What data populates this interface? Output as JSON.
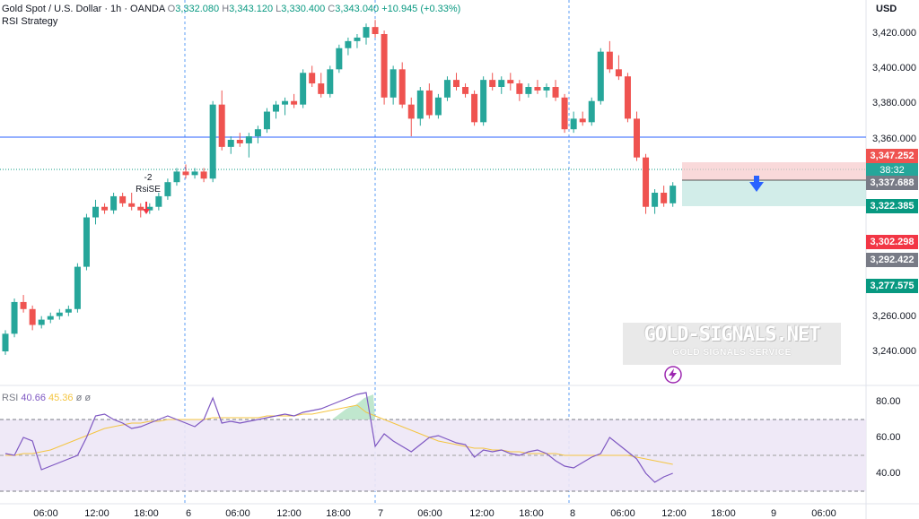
{
  "header": {
    "symbol": "Gold Spot / U.S. Dollar · 1h · OANDA",
    "open_label": "O",
    "open": "3,332.080",
    "high_label": "H",
    "high": "3,343.120",
    "low_label": "L",
    "low": "3,330.400",
    "close_label": "C",
    "close": "3,343.040",
    "change": "+10.945 (+0.33%)",
    "strategy": "RSI Strategy"
  },
  "rsi_header": {
    "name": "RSI",
    "value": "40.66",
    "ma": "45.36",
    "extra1": "ø",
    "extra2": "ø"
  },
  "currency": "USD",
  "price_axis": [
    "3,420.000",
    "3,400.000",
    "3,380.000",
    "3,360.000",
    "3,260.000",
    "3,240.000"
  ],
  "rsi_axis": [
    "80.00",
    "60.00",
    "40.00"
  ],
  "time_axis": [
    "06:00",
    "12:00",
    "18:00",
    "6",
    "06:00",
    "12:00",
    "18:00",
    "7",
    "06:00",
    "12:00",
    "18:00",
    "8",
    "06:00",
    "12:00",
    "18:00",
    "9",
    "06:00"
  ],
  "price_tags": {
    "stop": "3,347.252",
    "countdown": "38:32",
    "current": "3,337.688",
    "target": "3,322.385",
    "red_level": "3,302.298",
    "gray_level": "3,292.422",
    "green_level": "3,277.575"
  },
  "signal": {
    "count": "-2",
    "name": "RsiSE"
  },
  "watermark": {
    "title": "GOLD-SIGNALS.NET",
    "subtitle": "GOLD SIGNALS SERVICE"
  },
  "colors": {
    "up": "#26a69a",
    "down": "#ef5350",
    "rsi": "#7e57c2",
    "rsi_ma": "#f4c542",
    "accent": "#2962ff"
  },
  "chart_data": {
    "type": "candlestick",
    "ylim": [
      3230,
      3430
    ],
    "candles": [
      [
        3240,
        3252,
        3238,
        3250
      ],
      [
        3250,
        3270,
        3248,
        3268
      ],
      [
        3268,
        3272,
        3262,
        3264
      ],
      [
        3264,
        3266,
        3252,
        3255
      ],
      [
        3255,
        3260,
        3253,
        3258
      ],
      [
        3258,
        3262,
        3256,
        3260
      ],
      [
        3260,
        3264,
        3258,
        3262
      ],
      [
        3262,
        3266,
        3260,
        3264
      ],
      [
        3264,
        3290,
        3262,
        3288
      ],
      [
        3288,
        3318,
        3286,
        3316
      ],
      [
        3316,
        3326,
        3312,
        3322
      ],
      [
        3322,
        3324,
        3318,
        3320
      ],
      [
        3320,
        3330,
        3318,
        3328
      ],
      [
        3328,
        3330,
        3322,
        3324
      ],
      [
        3324,
        3330,
        3320,
        3322
      ],
      [
        3322,
        3324,
        3316,
        3320
      ],
      [
        3320,
        3324,
        3318,
        3322
      ],
      [
        3322,
        3330,
        3320,
        3328
      ],
      [
        3328,
        3338,
        3326,
        3336
      ],
      [
        3336,
        3344,
        3334,
        3342
      ],
      [
        3342,
        3346,
        3338,
        3340
      ],
      [
        3340,
        3344,
        3338,
        3342
      ],
      [
        3342,
        3344,
        3336,
        3338
      ],
      [
        3338,
        3382,
        3336,
        3380
      ],
      [
        3380,
        3388,
        3354,
        3356
      ],
      [
        3356,
        3362,
        3352,
        3360
      ],
      [
        3360,
        3364,
        3356,
        3358
      ],
      [
        3358,
        3364,
        3350,
        3362
      ],
      [
        3362,
        3368,
        3358,
        3366
      ],
      [
        3366,
        3378,
        3364,
        3376
      ],
      [
        3376,
        3382,
        3372,
        3380
      ],
      [
        3380,
        3384,
        3374,
        3382
      ],
      [
        3382,
        3386,
        3378,
        3380
      ],
      [
        3380,
        3400,
        3378,
        3398
      ],
      [
        3398,
        3402,
        3390,
        3392
      ],
      [
        3392,
        3398,
        3384,
        3386
      ],
      [
        3386,
        3402,
        3384,
        3400
      ],
      [
        3400,
        3414,
        3398,
        3412
      ],
      [
        3412,
        3418,
        3408,
        3416
      ],
      [
        3416,
        3420,
        3412,
        3418
      ],
      [
        3418,
        3426,
        3414,
        3424
      ],
      [
        3424,
        3428,
        3418,
        3420
      ],
      [
        3420,
        3422,
        3380,
        3384
      ],
      [
        3384,
        3402,
        3380,
        3400
      ],
      [
        3400,
        3404,
        3378,
        3380
      ],
      [
        3380,
        3384,
        3362,
        3372
      ],
      [
        3372,
        3390,
        3368,
        3388
      ],
      [
        3388,
        3392,
        3372,
        3374
      ],
      [
        3374,
        3386,
        3372,
        3384
      ],
      [
        3384,
        3396,
        3382,
        3394
      ],
      [
        3394,
        3398,
        3388,
        3390
      ],
      [
        3390,
        3392,
        3384,
        3386
      ],
      [
        3386,
        3388,
        3368,
        3370
      ],
      [
        3370,
        3396,
        3368,
        3394
      ],
      [
        3394,
        3398,
        3388,
        3390
      ],
      [
        3390,
        3396,
        3386,
        3394
      ],
      [
        3394,
        3398,
        3388,
        3392
      ],
      [
        3392,
        3394,
        3382,
        3386
      ],
      [
        3386,
        3392,
        3384,
        3390
      ],
      [
        3390,
        3394,
        3386,
        3388
      ],
      [
        3388,
        3392,
        3384,
        3390
      ],
      [
        3390,
        3394,
        3382,
        3384
      ],
      [
        3384,
        3386,
        3364,
        3366
      ],
      [
        3366,
        3376,
        3364,
        3372
      ],
      [
        3372,
        3376,
        3368,
        3370
      ],
      [
        3370,
        3384,
        3368,
        3382
      ],
      [
        3382,
        3412,
        3380,
        3410
      ],
      [
        3410,
        3416,
        3398,
        3400
      ],
      [
        3400,
        3408,
        3394,
        3396
      ],
      [
        3396,
        3398,
        3370,
        3372
      ],
      [
        3372,
        3376,
        3348,
        3350
      ],
      [
        3350,
        3352,
        3318,
        3322
      ],
      [
        3322,
        3332,
        3318,
        3330
      ],
      [
        3330,
        3334,
        3322,
        3324
      ],
      [
        3324,
        3336,
        3322,
        3334
      ]
    ],
    "rsi": [
      51,
      50,
      60,
      58,
      42,
      44,
      46,
      48,
      50,
      60,
      72,
      73,
      70,
      68,
      65,
      66,
      68,
      70,
      72,
      70,
      68,
      66,
      70,
      82,
      68,
      69,
      68,
      69,
      70,
      71,
      72,
      73,
      72,
      74,
      75,
      76,
      78,
      80,
      82,
      84,
      85,
      55,
      62,
      58,
      55,
      52,
      56,
      60,
      61,
      59,
      57,
      56,
      49,
      53,
      52,
      53,
      51,
      50,
      52,
      53,
      51,
      47,
      44,
      43,
      46,
      49,
      51,
      60,
      56,
      52,
      48,
      40,
      35,
      38,
      40
    ],
    "rsi_ma": [
      50,
      50,
      51,
      51,
      52,
      53,
      55,
      57,
      59,
      61,
      63,
      65,
      66,
      67,
      68,
      68,
      69,
      69,
      70,
      70,
      70,
      70,
      70,
      71,
      71,
      71,
      71,
      71,
      71,
      72,
      72,
      72,
      72,
      73,
      73,
      74,
      75,
      76,
      77,
      78,
      74,
      72,
      70,
      68,
      66,
      64,
      62,
      60,
      58,
      57,
      56,
      55,
      54,
      54,
      53,
      53,
      52,
      52,
      51,
      51,
      51,
      51,
      50,
      50,
      50,
      50,
      50,
      50,
      50,
      50,
      49,
      48,
      47,
      46,
      45
    ]
  }
}
